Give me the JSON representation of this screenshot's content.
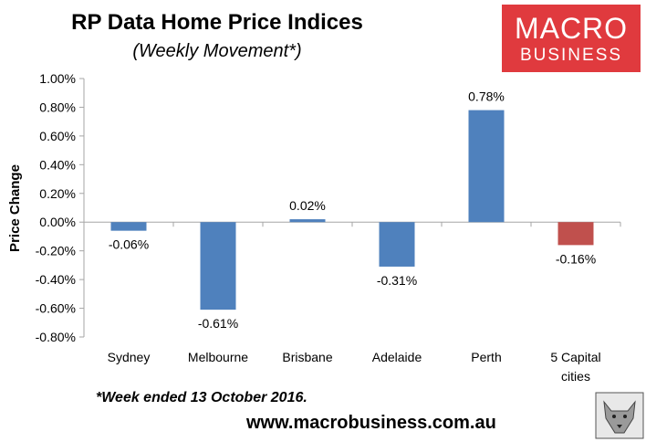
{
  "colors": {
    "bar_default": "#4f81bd",
    "bar_highlight": "#c0504d",
    "logo_bg": "#e03a3e",
    "axis": "#a6a6a6"
  },
  "logo": {
    "line1": "MACRO",
    "line2": "BUSINESS"
  },
  "footnote": "*Week ended 13 October 2016.",
  "website": "www.macrobusiness.com.au",
  "chart_data": {
    "type": "bar",
    "title": "RP Data Home Price Indices",
    "subtitle": "(Weekly Movement*)",
    "ylabel": "Price Change",
    "xlabel": "",
    "categories": [
      "Sydney",
      "Melbourne",
      "Brisbane",
      "Adelaide",
      "Perth",
      "5 Capital\ncities"
    ],
    "values": [
      -0.06,
      -0.61,
      0.02,
      -0.31,
      0.78,
      -0.16
    ],
    "data_labels": [
      "-0.06%",
      "-0.61%",
      "0.02%",
      "-0.31%",
      "0.78%",
      "-0.16%"
    ],
    "highlight_index": 5,
    "ylim": [
      -0.8,
      1.0
    ],
    "yticks": [
      1.0,
      0.8,
      0.6,
      0.4,
      0.2,
      0.0,
      -0.2,
      -0.4,
      -0.6,
      -0.8
    ],
    "ytick_labels": [
      "1.00%",
      "0.80%",
      "0.60%",
      "0.40%",
      "0.20%",
      "0.00%",
      "-0.20%",
      "-0.40%",
      "-0.60%",
      "-0.80%"
    ],
    "grid": false,
    "legend": "none"
  }
}
